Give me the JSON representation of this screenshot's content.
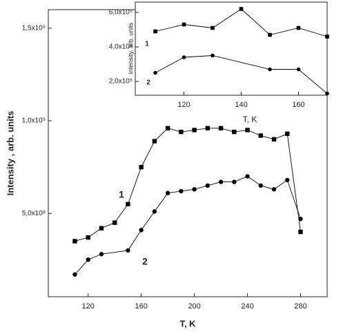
{
  "chart_data": [
    {
      "type": "line",
      "xlabel": "T, K",
      "ylabel": "Intensity , arb. units",
      "xlim": [
        90,
        300
      ],
      "ylim": [
        50000000,
        1600000000
      ],
      "xticks": [
        120,
        160,
        200,
        240,
        280
      ],
      "yticks": [
        {
          "value": 500000000,
          "label": "5,0x10⁸"
        },
        {
          "value": 1000000000,
          "label": "1,0x10⁹"
        },
        {
          "value": 1500000000,
          "label": "1,5x10⁹"
        }
      ],
      "annotations": [
        "1",
        "2"
      ],
      "series": [
        {
          "name": "1",
          "marker": "square",
          "color": "#000000",
          "x": [
            110,
            120,
            130,
            140,
            150,
            160,
            170,
            180,
            190,
            200,
            210,
            220,
            230,
            240,
            250,
            260,
            270,
            280
          ],
          "values": [
            350000000,
            370000000,
            420000000,
            450000000,
            550000000,
            750000000,
            890000000,
            960000000,
            940000000,
            950000000,
            960000000,
            960000000,
            940000000,
            950000000,
            920000000,
            900000000,
            930000000,
            400000000
          ]
        },
        {
          "name": "2",
          "marker": "circle",
          "color": "#000000",
          "x": [
            110,
            120,
            130,
            150,
            160,
            170,
            180,
            190,
            200,
            210,
            220,
            230,
            240,
            250,
            260,
            270,
            280
          ],
          "values": [
            170000000,
            250000000,
            280000000,
            300000000,
            410000000,
            510000000,
            610000000,
            620000000,
            630000000,
            650000000,
            670000000,
            670000000,
            700000000,
            650000000,
            630000000,
            680000000,
            470000000
          ]
        }
      ]
    },
    {
      "type": "line",
      "xlabel": "T, K",
      "ylabel": "intensity, arb. units",
      "xlim": [
        103,
        170
      ],
      "ylim": [
        120000,
        660000
      ],
      "xticks": [
        120,
        140,
        160
      ],
      "yticks": [
        {
          "value": 200000,
          "label": "2,0x10⁵"
        },
        {
          "value": 400000,
          "label": "4,0x10⁵"
        },
        {
          "value": 600000,
          "label": "6,0x10⁵"
        }
      ],
      "annotations": [
        "1",
        "2"
      ],
      "series": [
        {
          "name": "1",
          "marker": "square",
          "color": "#000000",
          "x": [
            110,
            120,
            130,
            140,
            150,
            160,
            170
          ],
          "values": [
            490000,
            530000,
            510000,
            620000,
            470000,
            510000,
            460000
          ]
        },
        {
          "name": "2",
          "marker": "circle",
          "color": "#000000",
          "x": [
            110,
            120,
            130,
            150,
            160,
            170
          ],
          "values": [
            250000,
            340000,
            350000,
            270000,
            270000,
            130000
          ]
        }
      ]
    }
  ]
}
